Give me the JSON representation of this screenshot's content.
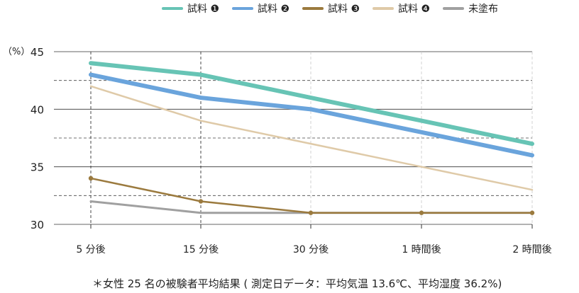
{
  "chart_data": {
    "type": "line",
    "categories": [
      "5 分後",
      "15 分後",
      "30 分後",
      "1 時間後",
      "2 時間後"
    ],
    "ylim": [
      30,
      45
    ],
    "yticks": [
      30,
      35,
      40,
      45
    ],
    "ylabel": "（%）",
    "grid": true,
    "legend_position": "top",
    "series": [
      {
        "name": "試料 ❶",
        "color": "#67c4b5",
        "values": [
          44,
          43,
          41,
          39,
          37
        ],
        "width": 6,
        "markers": false
      },
      {
        "name": "試料 ❷",
        "color": "#6aa4dc",
        "values": [
          43,
          41,
          40,
          38,
          36
        ],
        "width": 6,
        "markers": false
      },
      {
        "name": "試料 ❸",
        "color": "#9b7a3e",
        "values": [
          34,
          32,
          31,
          31,
          31
        ],
        "width": 2.5,
        "markers": true
      },
      {
        "name": "試料 ❹",
        "color": "#dfcaa8",
        "values": [
          42,
          39,
          37,
          35,
          33
        ],
        "width": 2.5,
        "markers": false
      },
      {
        "name": "未塗布",
        "color": "#a0a0a0",
        "values": [
          32,
          31,
          31,
          31,
          31
        ],
        "width": 3,
        "markers": false
      }
    ],
    "footnote": "＊女性 25 名の被験者平均結果 ( 測定日データ：平均気温 13.6℃、平均湿度 36.2%)"
  }
}
